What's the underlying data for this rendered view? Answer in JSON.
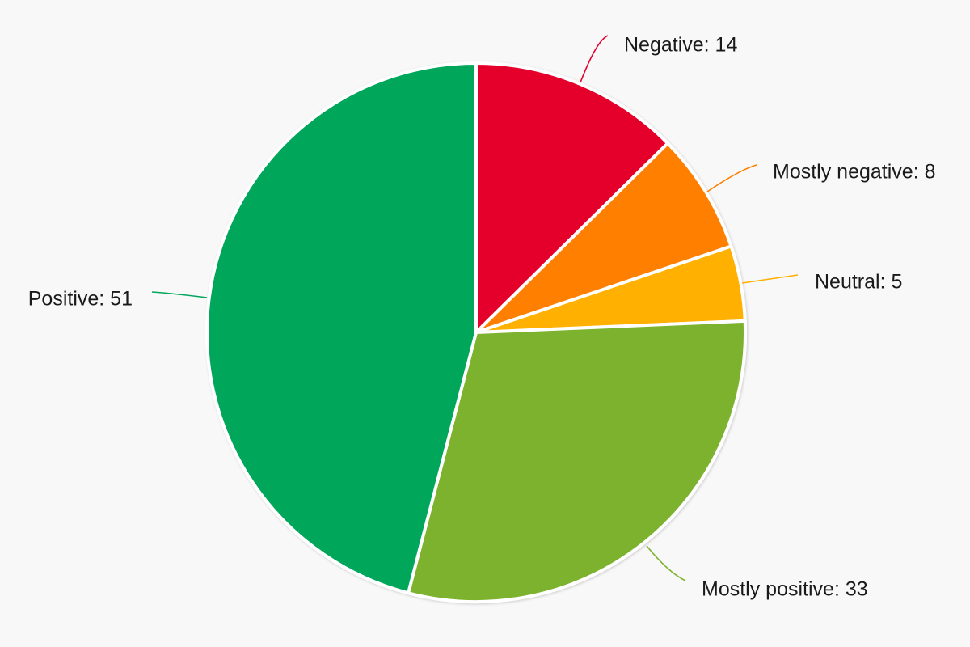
{
  "chart_data": {
    "type": "pie",
    "slices": [
      {
        "label": "Negative",
        "value": 14,
        "color": "#e4002b"
      },
      {
        "label": "Mostly negative",
        "value": 8,
        "color": "#ff7f00"
      },
      {
        "label": "Neutral",
        "value": 5,
        "color": "#ffb000"
      },
      {
        "label": "Mostly positive",
        "value": 33,
        "color": "#7db22f"
      },
      {
        "label": "Positive",
        "value": 51,
        "color": "#00a65a"
      }
    ],
    "start_angle_deg": 0,
    "direction": "clockwise",
    "data_labels": "outside, with leader lines, format 'label: value'",
    "legend": "none",
    "background": "#f8f8f8",
    "slice_border_color": "#ffffff"
  }
}
